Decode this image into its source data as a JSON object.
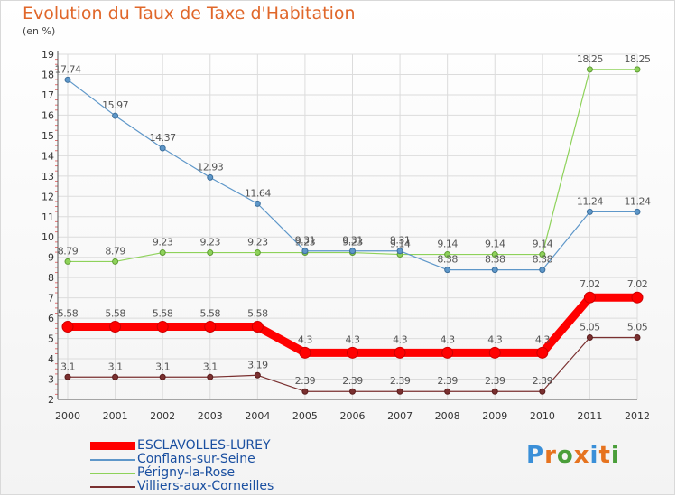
{
  "header": {
    "title": "Evolution du Taux de Taxe d'Habitation",
    "subtitle": "(en %)"
  },
  "brand": {
    "text": "Proxiti",
    "colors": [
      "#3a8fd8",
      "#e6731f",
      "#4a9e3a",
      "#e6731f",
      "#3a8fd8",
      "#e6731f",
      "#4a9e3a"
    ]
  },
  "chart_data": {
    "type": "line",
    "title": "Evolution du Taux de Taxe d'Habitation",
    "ylabel": "(en %)",
    "x": [
      "2000",
      "2001",
      "2002",
      "2003",
      "2004",
      "2005",
      "2006",
      "2007",
      "2008",
      "2009",
      "2010",
      "2011",
      "2012"
    ],
    "y_ticks": [
      "2",
      "3",
      "4",
      "5",
      "6",
      "7",
      "8",
      "9",
      "10",
      "11",
      "12",
      "13",
      "14",
      "15",
      "16",
      "17",
      "18",
      "19"
    ],
    "ylim": [
      2,
      19
    ],
    "grid": true,
    "series": [
      {
        "name": "ESCLAVOLLES-LUREY",
        "color": "#ff0000",
        "width": 9,
        "marker_stroke": "#cc0000",
        "values": [
          5.58,
          5.58,
          5.58,
          5.58,
          5.58,
          4.3,
          4.3,
          4.3,
          4.3,
          4.3,
          4.3,
          7.02,
          7.02
        ],
        "labels": [
          "5.58",
          "5.58",
          "5.58",
          "5.58",
          "5.58",
          "4.3",
          "4.3",
          "4.3",
          "4.3",
          "4.3",
          "4.3",
          "7.02",
          "7.02"
        ]
      },
      {
        "name": "Conflans-sur-Seine",
        "color": "#5e97c9",
        "width": 1.2,
        "marker_stroke": "#3d6f9c",
        "values": [
          17.74,
          15.97,
          14.37,
          12.93,
          11.64,
          9.31,
          9.31,
          9.31,
          8.38,
          8.38,
          8.38,
          11.24,
          11.24
        ],
        "labels": [
          "17.74",
          "15.97",
          "14.37",
          "12.93",
          "11.64",
          "9.31",
          "9.31",
          "9.31",
          "8.38",
          "8.38",
          "8.38",
          "11.24",
          "11.24"
        ]
      },
      {
        "name": "Périgny-la-Rose",
        "color": "#8ed25a",
        "width": 1.2,
        "marker_stroke": "#5e9c33",
        "values": [
          8.79,
          8.79,
          9.23,
          9.23,
          9.23,
          9.23,
          9.23,
          9.14,
          9.14,
          9.14,
          9.14,
          18.25,
          18.25
        ],
        "labels": [
          "8.79",
          "8.79",
          "9.23",
          "9.23",
          "9.23",
          "9.23",
          "9.23",
          "9.14",
          "9.14",
          "9.14",
          "9.14",
          "18.25",
          "18.25"
        ]
      },
      {
        "name": "Villiers-aux-Corneilles",
        "color": "#7a3030",
        "width": 1.2,
        "marker_stroke": "#5a1d1d",
        "values": [
          3.1,
          3.1,
          3.1,
          3.1,
          3.19,
          2.39,
          2.39,
          2.39,
          2.39,
          2.39,
          2.39,
          5.05,
          5.05
        ],
        "labels": [
          "3.1",
          "3.1",
          "3.1",
          "3.1",
          "3.19",
          "2.39",
          "2.39",
          "2.39",
          "2.39",
          "2.39",
          "2.39",
          "5.05",
          "5.05"
        ]
      }
    ]
  }
}
